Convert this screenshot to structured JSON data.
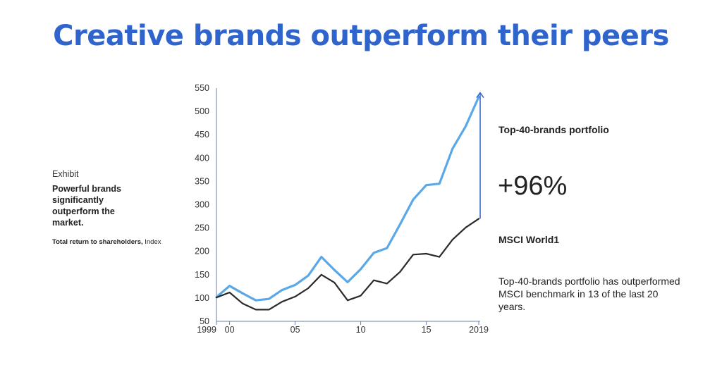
{
  "title": "Creative brands outperform their peers",
  "exhibit": {
    "label": "Exhibit",
    "heading": "Powerful brands significantly outperform the market.",
    "sub_bold": "Total return to shareholders,",
    "sub_rest": " Index"
  },
  "annotations": {
    "top_label": "Top-40-brands portfolio",
    "delta": "+96%",
    "bottom_label": "MSCI World1",
    "note": "Top-40-brands portfolio has outperformed MSCI benchmark in 13 of the last 20 years."
  },
  "chart_data": {
    "type": "line",
    "title": "",
    "xlabel": "",
    "ylabel": "",
    "x": [
      1999,
      2000,
      2001,
      2002,
      2003,
      2004,
      2005,
      2006,
      2007,
      2008,
      2009,
      2010,
      2011,
      2012,
      2013,
      2014,
      2015,
      2016,
      2017,
      2018,
      2019
    ],
    "xlim": [
      1999,
      2019
    ],
    "ylim": [
      50,
      550
    ],
    "y_ticks": [
      50,
      100,
      150,
      200,
      250,
      300,
      350,
      400,
      450,
      500,
      550
    ],
    "x_ticks": [
      {
        "value": 1999,
        "label": "1999"
      },
      {
        "value": 2000,
        "label": "00"
      },
      {
        "value": 2005,
        "label": "05"
      },
      {
        "value": 2010,
        "label": "10"
      },
      {
        "value": 2015,
        "label": "15"
      },
      {
        "value": 2019,
        "label": "2019"
      }
    ],
    "grid": false,
    "legend": "none",
    "series": [
      {
        "key": "top40",
        "color": "#5aa8e8",
        "values": [
          102,
          126,
          110,
          95,
          98,
          117,
          128,
          148,
          188,
          160,
          134,
          162,
          197,
          207,
          258,
          311,
          342,
          345,
          420,
          468,
          531
        ]
      },
      {
        "key": "msci",
        "color": "#2a2a2a",
        "values": [
          101,
          112,
          88,
          75,
          75,
          92,
          103,
          121,
          150,
          133,
          95,
          105,
          138,
          131,
          156,
          193,
          195,
          188,
          225,
          251,
          270
        ]
      }
    ],
    "arrow": {
      "from": 270,
      "to": 531,
      "x": 2019,
      "color": "#2f64cc"
    }
  }
}
